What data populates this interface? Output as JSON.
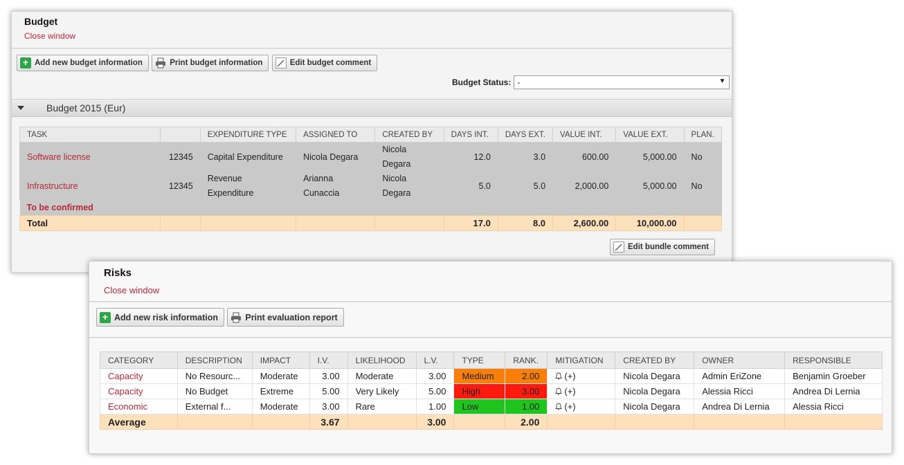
{
  "budget": {
    "title": "Budget",
    "close_label": "Close window",
    "toolbar": {
      "add_label": "Add new budget information",
      "print_label": "Print budget information",
      "edit_comment_label": "Edit budget comment"
    },
    "status": {
      "label": "Budget Status:",
      "value": "-"
    },
    "section_title": "Budget 2015 (Eur)",
    "columns": [
      "TASK",
      "",
      "EXPENDITURE TYPE",
      "ASSIGNED TO",
      "CREATED BY",
      "DAYS INT.",
      "DAYS EXT.",
      "VALUE INT.",
      "VALUE EXT.",
      "PLAN."
    ],
    "rows": [
      {
        "task": "Software license",
        "code": "12345",
        "expenditure": "Capital Expenditure",
        "assigned": "Nicola Degara",
        "created": "Nicola Degara",
        "days_int": "12.0",
        "days_ext": "3.0",
        "value_int": "600.00",
        "value_ext": "5,000.00",
        "plan": "No"
      },
      {
        "task": "Infrastructure",
        "code": "12345",
        "expenditure": "Revenue Expenditure",
        "assigned": "Arianna Cunaccia",
        "created": "Nicola Degara",
        "days_int": "5.0",
        "days_ext": "5.0",
        "value_int": "2,000.00",
        "value_ext": "5,000.00",
        "plan": "No"
      }
    ],
    "tbc_label": "To be confirmed",
    "total": {
      "label": "Total",
      "days_int": "17.0",
      "days_ext": "8.0",
      "value_int": "2,600.00",
      "value_ext": "10,000.00"
    },
    "bundle_comment_label": "Edit bundle comment"
  },
  "risks": {
    "title": "Risks",
    "close_label": "Close window",
    "toolbar": {
      "add_label": "Add new risk information",
      "print_label": "Print evaluation report"
    },
    "columns": [
      "CATEGORY",
      "DESCRIPTION",
      "IMPACT",
      "I.V.",
      "LIKELIHOOD",
      "L.V.",
      "TYPE",
      "RANK.",
      "MITIGATION",
      "CREATED BY",
      "OWNER",
      "RESPONSIBLE"
    ],
    "rows": [
      {
        "category": "Capacity",
        "description": "No Resourc...",
        "impact": "Moderate",
        "iv": "3.00",
        "likelihood": "Moderate",
        "lv": "3.00",
        "type": "Medium",
        "rank": "2.00",
        "mitigation": "(+)",
        "created": "Nicola Degara",
        "owner": "Admin EriZone",
        "responsible": "Benjamin Groeber",
        "type_color": "#f77f0a"
      },
      {
        "category": "Capacity",
        "description": "No Budget",
        "impact": "Extreme",
        "iv": "5.00",
        "likelihood": "Very Likely",
        "lv": "5.00",
        "type": "High",
        "rank": "3.00",
        "mitigation": "(+)",
        "created": "Nicola Degara",
        "owner": "Alessia Ricci",
        "responsible": "Andrea Di Lernia",
        "type_color": "#ff1a10"
      },
      {
        "category": "Economic",
        "description": "External f...",
        "impact": "Moderate",
        "iv": "3.00",
        "likelihood": "Rare",
        "lv": "1.00",
        "type": "Low",
        "rank": "1.00",
        "mitigation": "(+)",
        "created": "Nicola Degara",
        "owner": "Andrea Di Lernia",
        "responsible": "Alessia Ricci",
        "type_color": "#1fc41f"
      }
    ],
    "average": {
      "label": "Average",
      "iv": "3.67",
      "lv": "3.00",
      "rank": "2.00"
    }
  },
  "colors": {
    "link": "#b5283a",
    "total_bg": "#fde0bc",
    "plus_icon": "#2da64a"
  },
  "icons": {
    "add": "plus-icon",
    "print": "printer-icon",
    "edit": "pencil-icon",
    "mitigation": "bell-icon",
    "section_toggle": "caret-down-icon"
  }
}
